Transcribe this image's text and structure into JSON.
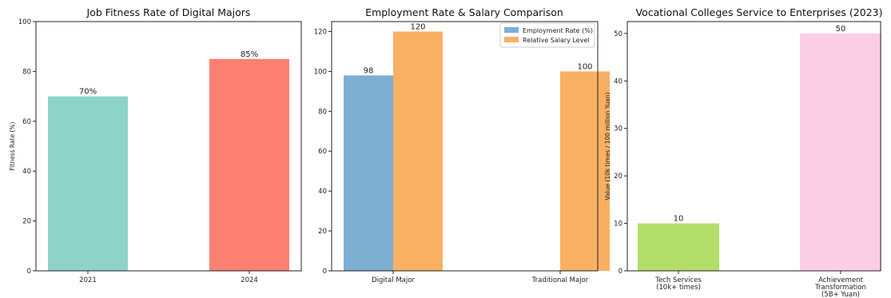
{
  "chart_data": [
    {
      "type": "bar",
      "title": "Job Fitness Rate of Digital Majors",
      "xlabel": "",
      "ylabel": "Fitness Rate (%)",
      "ylim": [
        0,
        100
      ],
      "yticks": [
        0,
        20,
        40,
        60,
        80,
        100
      ],
      "categories": [
        "2021",
        "2024"
      ],
      "values": [
        70,
        85
      ],
      "data_labels": [
        "70%",
        "85%"
      ],
      "colors": [
        "#8dd3c7",
        "#fb8072"
      ],
      "grid": false
    },
    {
      "type": "bar",
      "title": "Employment Rate & Salary Comparison",
      "xlabel": "",
      "ylabel": "",
      "ylim": [
        0,
        125
      ],
      "yticks": [
        0,
        20,
        40,
        60,
        80,
        100,
        120
      ],
      "categories": [
        "Digital Major",
        "Traditional Major"
      ],
      "series": [
        {
          "name": "Employment Rate (%)",
          "values": [
            98,
            null
          ],
          "labels": [
            "98",
            ""
          ],
          "color": "#7eaed2"
        },
        {
          "name": "Relative Salary Level",
          "values": [
            120,
            100
          ],
          "labels": [
            "120",
            "100"
          ],
          "color": "#f9b062"
        }
      ],
      "legend_position": "top-right",
      "grid": false
    },
    {
      "type": "bar",
      "title": "Vocational Colleges Service to Enterprises (2023)",
      "xlabel": "",
      "ylabel": "Value (10k times / 100 million Yuan)",
      "ylim": [
        0,
        52.5
      ],
      "yticks": [
        0,
        10,
        20,
        30,
        40,
        50
      ],
      "categories": [
        [
          "Tech Services",
          "(10k+ times)"
        ],
        [
          "Achievement",
          "Transformation",
          "(5B+ Yuan)"
        ]
      ],
      "values": [
        10,
        50
      ],
      "data_labels": [
        "10",
        "50"
      ],
      "colors": [
        "#b3de69",
        "#fccde5"
      ],
      "grid": false
    }
  ]
}
